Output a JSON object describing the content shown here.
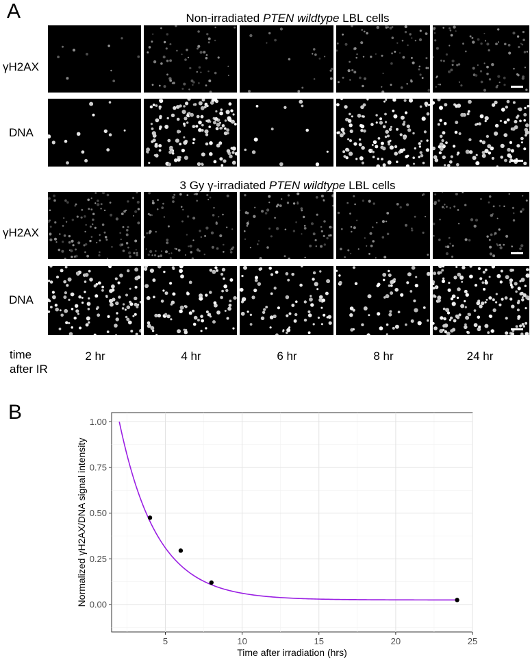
{
  "panel_a": {
    "letter": "A",
    "group1_title": {
      "pre": "Non-irradiated ",
      "italic": "PTEN wildtype",
      "post": " LBL cells"
    },
    "group2_title": {
      "pre": "3 Gy γ-irradiated ",
      "italic": "PTEN wildtype",
      "post": " LBL cells"
    },
    "row_labels": [
      "γH2AX",
      "DNA",
      "γH2AX",
      "DNA"
    ],
    "time_header": [
      "time",
      "after IR"
    ],
    "time_points": [
      "2 hr",
      "4 hr",
      "6 hr",
      "8 hr",
      "24 hr"
    ]
  },
  "panel_b": {
    "letter": "B"
  },
  "chart_data": {
    "type": "scatter",
    "title": "",
    "xlabel": "Time after irradiation (hrs)",
    "ylabel": "Normalized γH2AX/DNA signal intensity",
    "xlim": [
      1.5,
      25.0
    ],
    "ylim": [
      -0.15,
      1.05
    ],
    "xticks": [
      5,
      10,
      15,
      20,
      25
    ],
    "yticks": [
      0.0,
      0.25,
      0.5,
      0.75,
      1.0
    ],
    "ytick_labels": [
      "0.00",
      "0.25",
      "0.50",
      "0.75",
      "1.00"
    ],
    "grid": true,
    "points": {
      "x": [
        4,
        6,
        8,
        24
      ],
      "y": [
        0.475,
        0.295,
        0.12,
        0.025
      ]
    },
    "fit_curve": {
      "color": "#9a1fe3",
      "x_range": [
        2,
        24
      ],
      "model": "y = a * exp(-k * (x - 2)) + c",
      "a": 0.975,
      "k": 0.41,
      "c": 0.025
    },
    "point_color": "#000000"
  }
}
